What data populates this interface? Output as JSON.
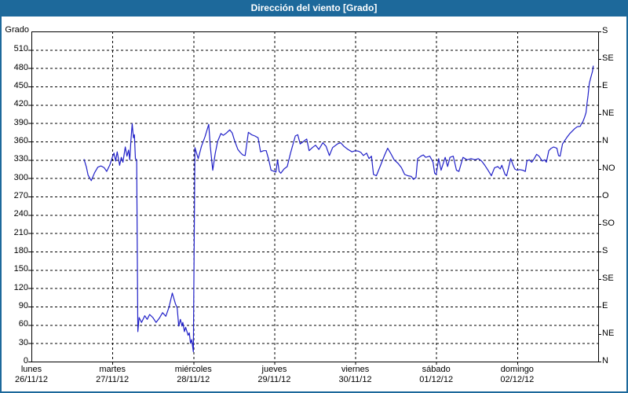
{
  "title": "Dirección del viento [Grado]",
  "colors": {
    "titlebar": "#1d699b",
    "window_border": "#1d699b",
    "line": "#2020c8",
    "grid": "#000000",
    "text": "#000000",
    "background": "#ffffff"
  },
  "chart_data": {
    "type": "line",
    "title": "Dirección del viento [Grado]",
    "ylabel": "Grado",
    "ylim": [
      0,
      540
    ],
    "xlim": [
      0,
      7
    ],
    "grid": "dashed, horizontal every 30 deg, vertical at each day",
    "legend_position": "none",
    "y_ticks_left": [
      0,
      30,
      60,
      90,
      120,
      150,
      180,
      210,
      240,
      270,
      300,
      330,
      360,
      390,
      420,
      450,
      480,
      510
    ],
    "y_ticks_right": [
      {
        "deg": 0,
        "label": "N"
      },
      {
        "deg": 45,
        "label": "NE"
      },
      {
        "deg": 90,
        "label": "E"
      },
      {
        "deg": 135,
        "label": "SE"
      },
      {
        "deg": 180,
        "label": "S"
      },
      {
        "deg": 225,
        "label": "SO"
      },
      {
        "deg": 270,
        "label": "O"
      },
      {
        "deg": 315,
        "label": "NO"
      },
      {
        "deg": 360,
        "label": "N"
      },
      {
        "deg": 405,
        "label": "NE"
      },
      {
        "deg": 450,
        "label": "E"
      },
      {
        "deg": 495,
        "label": "SE"
      },
      {
        "deg": 540,
        "label": "S"
      }
    ],
    "x_days": [
      {
        "day": "lunes",
        "date": "26/11/12"
      },
      {
        "day": "martes",
        "date": "27/11/12"
      },
      {
        "day": "miércoles",
        "date": "28/11/12"
      },
      {
        "day": "jueves",
        "date": "29/11/12"
      },
      {
        "day": "viernes",
        "date": "30/11/12"
      },
      {
        "day": "sábado",
        "date": "01/12/12"
      },
      {
        "day": "domingo",
        "date": "02/12/12"
      }
    ],
    "series": [
      {
        "name": "Dirección del viento [Grado]",
        "color": "#2020c8",
        "points": [
          [
            0.65,
            331
          ],
          [
            0.68,
            318
          ],
          [
            0.7,
            305
          ],
          [
            0.74,
            296
          ],
          [
            0.78,
            309
          ],
          [
            0.82,
            318
          ],
          [
            0.86,
            320
          ],
          [
            0.9,
            317
          ],
          [
            0.93,
            311
          ],
          [
            0.97,
            322
          ],
          [
            1.0,
            334
          ],
          [
            1.02,
            341
          ],
          [
            1.04,
            328
          ],
          [
            1.06,
            343
          ],
          [
            1.09,
            321
          ],
          [
            1.11,
            334
          ],
          [
            1.13,
            326
          ],
          [
            1.16,
            351
          ],
          [
            1.18,
            336
          ],
          [
            1.2,
            346
          ],
          [
            1.215,
            330
          ],
          [
            1.23,
            364
          ],
          [
            1.245,
            389
          ],
          [
            1.26,
            366
          ],
          [
            1.272,
            371
          ],
          [
            1.285,
            332
          ],
          [
            1.3,
            330
          ],
          [
            1.315,
            49
          ],
          [
            1.33,
            72
          ],
          [
            1.36,
            64
          ],
          [
            1.4,
            75
          ],
          [
            1.43,
            69
          ],
          [
            1.46,
            77
          ],
          [
            1.5,
            72
          ],
          [
            1.54,
            64
          ],
          [
            1.58,
            71
          ],
          [
            1.62,
            80
          ],
          [
            1.66,
            74
          ],
          [
            1.7,
            89
          ],
          [
            1.74,
            112
          ],
          [
            1.78,
            94
          ],
          [
            1.8,
            88
          ],
          [
            1.82,
            58
          ],
          [
            1.84,
            69
          ],
          [
            1.86,
            58
          ],
          [
            1.87,
            64
          ],
          [
            1.89,
            49
          ],
          [
            1.905,
            56
          ],
          [
            1.935,
            43
          ],
          [
            1.95,
            47
          ],
          [
            1.965,
            30
          ],
          [
            1.98,
            36
          ],
          [
            2.0,
            16
          ],
          [
            2.02,
            350
          ],
          [
            2.06,
            332
          ],
          [
            2.1,
            352
          ],
          [
            2.145,
            368
          ],
          [
            2.19,
            388
          ],
          [
            2.21,
            352
          ],
          [
            2.24,
            313
          ],
          [
            2.27,
            340
          ],
          [
            2.3,
            360
          ],
          [
            2.34,
            373
          ],
          [
            2.37,
            370
          ],
          [
            2.41,
            374
          ],
          [
            2.45,
            379
          ],
          [
            2.48,
            374
          ],
          [
            2.51,
            361
          ],
          [
            2.55,
            347
          ],
          [
            2.58,
            342
          ],
          [
            2.61,
            338
          ],
          [
            2.64,
            337
          ],
          [
            2.68,
            375
          ],
          [
            2.72,
            371
          ],
          [
            2.76,
            369
          ],
          [
            2.8,
            366
          ],
          [
            2.83,
            343
          ],
          [
            2.87,
            345
          ],
          [
            2.9,
            345
          ],
          [
            2.93,
            331
          ],
          [
            2.96,
            313
          ],
          [
            3.0,
            311
          ],
          [
            3.02,
            310
          ],
          [
            3.04,
            330
          ],
          [
            3.06,
            311
          ],
          [
            3.08,
            308
          ],
          [
            3.12,
            315
          ],
          [
            3.16,
            319
          ],
          [
            3.2,
            341
          ],
          [
            3.26,
            369
          ],
          [
            3.29,
            371
          ],
          [
            3.32,
            356
          ],
          [
            3.36,
            360
          ],
          [
            3.4,
            364
          ],
          [
            3.43,
            345
          ],
          [
            3.47,
            350
          ],
          [
            3.51,
            354
          ],
          [
            3.55,
            347
          ],
          [
            3.6,
            358
          ],
          [
            3.64,
            352
          ],
          [
            3.68,
            337
          ],
          [
            3.72,
            350
          ],
          [
            3.78,
            356
          ],
          [
            3.82,
            358
          ],
          [
            3.86,
            352
          ],
          [
            3.91,
            347
          ],
          [
            3.96,
            343
          ],
          [
            4.0,
            345
          ],
          [
            4.04,
            344
          ],
          [
            4.07,
            342
          ],
          [
            4.1,
            337
          ],
          [
            4.14,
            341
          ],
          [
            4.17,
            332
          ],
          [
            4.2,
            336
          ],
          [
            4.225,
            306
          ],
          [
            4.26,
            304
          ],
          [
            4.31,
            320
          ],
          [
            4.36,
            337
          ],
          [
            4.4,
            349
          ],
          [
            4.44,
            340
          ],
          [
            4.48,
            330
          ],
          [
            4.53,
            324
          ],
          [
            4.57,
            317
          ],
          [
            4.61,
            306
          ],
          [
            4.65,
            304
          ],
          [
            4.69,
            303
          ],
          [
            4.72,
            298
          ],
          [
            4.75,
            301
          ],
          [
            4.77,
            332
          ],
          [
            4.81,
            336
          ],
          [
            4.84,
            338
          ],
          [
            4.87,
            334
          ],
          [
            4.92,
            336
          ],
          [
            4.96,
            326
          ],
          [
            4.98,
            308
          ],
          [
            5.0,
            306
          ],
          [
            5.03,
            332
          ],
          [
            5.06,
            313
          ],
          [
            5.11,
            334
          ],
          [
            5.14,
            319
          ],
          [
            5.17,
            334
          ],
          [
            5.21,
            336
          ],
          [
            5.25,
            313
          ],
          [
            5.28,
            311
          ],
          [
            5.33,
            334
          ],
          [
            5.38,
            330
          ],
          [
            5.43,
            332
          ],
          [
            5.48,
            330
          ],
          [
            5.52,
            332
          ],
          [
            5.56,
            328
          ],
          [
            5.6,
            321
          ],
          [
            5.64,
            313
          ],
          [
            5.68,
            304
          ],
          [
            5.72,
            317
          ],
          [
            5.76,
            319
          ],
          [
            5.79,
            315
          ],
          [
            5.81,
            321
          ],
          [
            5.85,
            306
          ],
          [
            5.87,
            304
          ],
          [
            5.92,
            332
          ],
          [
            5.95,
            321
          ],
          [
            5.97,
            315
          ],
          [
            6.0,
            313
          ],
          [
            6.03,
            314
          ],
          [
            6.07,
            313
          ],
          [
            6.1,
            311
          ],
          [
            6.12,
            328
          ],
          [
            6.15,
            330
          ],
          [
            6.18,
            326
          ],
          [
            6.21,
            332
          ],
          [
            6.24,
            339
          ],
          [
            6.27,
            336
          ],
          [
            6.31,
            328
          ],
          [
            6.34,
            330
          ],
          [
            6.36,
            326
          ],
          [
            6.39,
            345
          ],
          [
            6.42,
            349
          ],
          [
            6.45,
            351
          ],
          [
            6.49,
            349
          ],
          [
            6.51,
            337
          ],
          [
            6.53,
            336
          ],
          [
            6.56,
            356
          ],
          [
            6.58,
            360
          ],
          [
            6.61,
            366
          ],
          [
            6.65,
            373
          ],
          [
            6.68,
            377
          ],
          [
            6.71,
            381
          ],
          [
            6.74,
            384
          ],
          [
            6.78,
            385
          ],
          [
            6.79,
            388
          ],
          [
            6.81,
            392
          ],
          [
            6.83,
            399
          ],
          [
            6.85,
            407
          ],
          [
            6.86,
            420
          ],
          [
            6.875,
            435
          ],
          [
            6.89,
            455
          ],
          [
            6.91,
            465
          ],
          [
            6.93,
            475
          ],
          [
            6.94,
            484
          ]
        ]
      }
    ]
  }
}
